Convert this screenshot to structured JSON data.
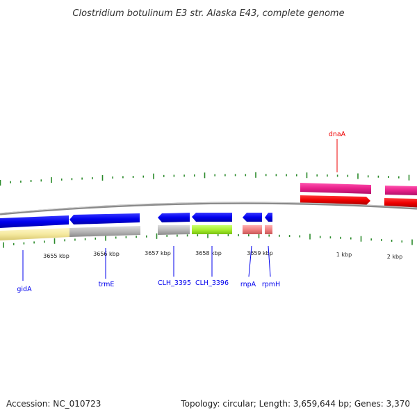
{
  "title": "Clostridium botulinum E3 str. Alaska E43, complete genome",
  "axis_labels": [
    "3655 kbp",
    "3656 kbp",
    "3657 kbp",
    "3658 kbp",
    "3659 kbp",
    "1 kbp",
    "2 kbp"
  ],
  "genes": [
    {
      "name": "gidA",
      "color": "#0000ee",
      "band_color": "#f5e9a0"
    },
    {
      "name": "trmE",
      "color": "#0000ee",
      "band_color": "#b8b8b8"
    },
    {
      "name": "CLH_3395",
      "color": "#0000ee",
      "band_color": "#b8b8b8"
    },
    {
      "name": "CLH_3396",
      "color": "#0000ee",
      "band_color": "#a8f030"
    },
    {
      "name": "rnpA",
      "color": "#0000ee",
      "band_color": "#f08080"
    },
    {
      "name": "rpmH",
      "color": "#0000ee",
      "band_color": "#f08080"
    },
    {
      "name": "dnaA",
      "color": "#ee0000",
      "band_color": "#e8208a"
    }
  ],
  "footer": {
    "accession": "Accession: NC_010723",
    "summary": "Topology: circular; Length: 3,659,644 bp; Genes: 3,370"
  },
  "colors": {
    "reverse_strand": "#0000ee",
    "forward_strand": "#ee0000",
    "tick": "#2a8a2a",
    "backbone": "#888888"
  }
}
